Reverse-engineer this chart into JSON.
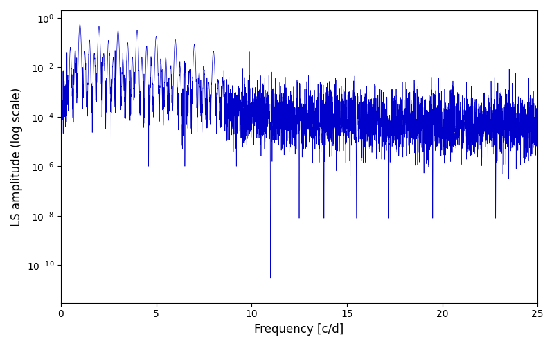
{
  "xlabel": "Frequency [c/d]",
  "ylabel": "LS amplitude (log scale)",
  "line_color": "#0000cc",
  "xlim": [
    0,
    25
  ],
  "ylim": [
    3e-12,
    2.0
  ],
  "figsize": [
    8.0,
    5.0
  ],
  "dpi": 100,
  "seed": 77,
  "n_points": 5000,
  "freq_max": 25.0
}
